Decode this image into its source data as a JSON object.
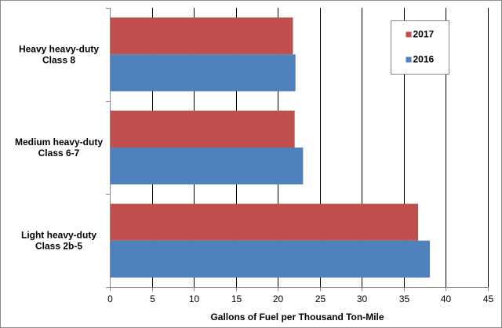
{
  "chart_data": {
    "type": "bar",
    "orientation": "horizontal",
    "categories": [
      [
        "Heavy heavy-duty",
        "Class 8"
      ],
      [
        "Medium heavy-duty",
        "Class 6-7"
      ],
      [
        "Light heavy-duty",
        "Class 2b-5"
      ]
    ],
    "series": [
      {
        "name": "2017",
        "color": "#c0504d",
        "values": [
          21.8,
          22.0,
          36.7
        ]
      },
      {
        "name": "2016",
        "color": "#4f81bd",
        "values": [
          22.1,
          23.0,
          38.1
        ]
      }
    ],
    "xlabel": "Gallons of Fuel per Thousand  Ton-Mile",
    "xlim": [
      0,
      45
    ],
    "xticks": [
      0,
      5,
      10,
      15,
      20,
      25,
      30,
      35,
      40,
      45
    ],
    "grid": "vertical",
    "legend": "top-right"
  }
}
